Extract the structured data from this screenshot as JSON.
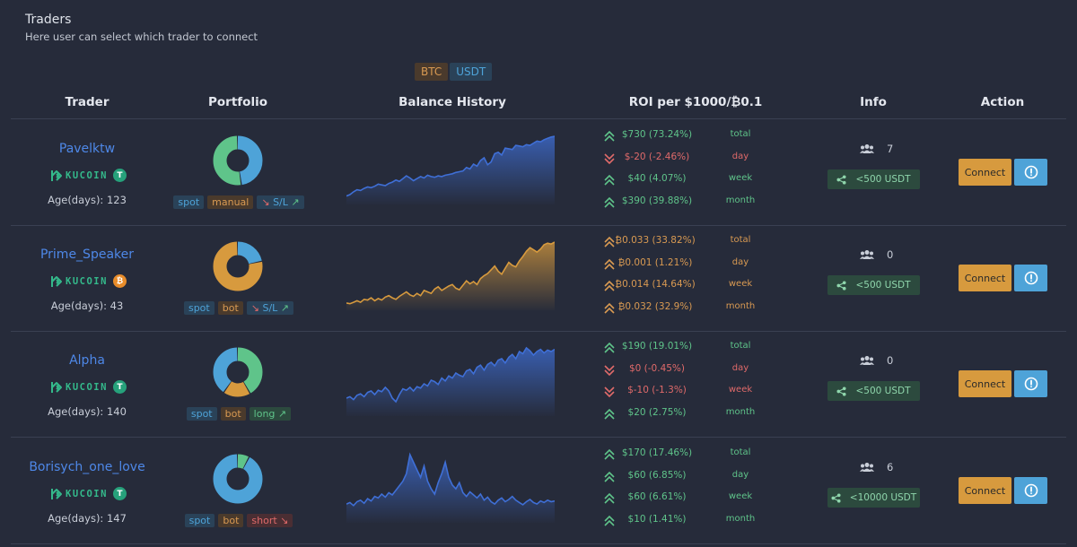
{
  "header": {
    "title": "Traders",
    "subtitle": "Here user can select which trader to connect"
  },
  "currency": {
    "btc": "BTC",
    "usdt": "USDT",
    "selected": "USDT"
  },
  "columns": {
    "trader": "Trader",
    "portfolio": "Portfolio",
    "balance": "Balance History",
    "roi": "ROI per $1000/₿0.1",
    "info": "Info",
    "action": "Action"
  },
  "colors": {
    "green": "#5fc48a",
    "red": "#e06a6a",
    "orange": "#d99a52",
    "blue": "#4e88e8"
  },
  "traders": [
    {
      "name": "Pavelktw",
      "exchange": "KUCOIN",
      "coin": "T",
      "coin_type": "usdt",
      "age": "Age(days): 123",
      "portfolio": [
        {
          "share": 0.48,
          "color": "#4ea3d8"
        },
        {
          "share": 0.52,
          "color": "#5fc48a"
        }
      ],
      "tags": [
        {
          "text": "spot",
          "style": "blue"
        },
        {
          "text": "manual",
          "style": "orange"
        },
        {
          "text": "S/L",
          "style": "blue",
          "icon": "sl-icon"
        }
      ],
      "balance": {
        "color": "#3f6fd6",
        "values": [
          14,
          18,
          26,
          32,
          30,
          36,
          40,
          38,
          42,
          48,
          46,
          44,
          50,
          54,
          60,
          56,
          64,
          72,
          66,
          58,
          64,
          70,
          66,
          74,
          70,
          68,
          72,
          70,
          74,
          76,
          78,
          82,
          84,
          86,
          96,
          92,
          106,
          100,
          116,
          124,
          104,
          112,
          136,
          140,
          132,
          152,
          150,
          148,
          160,
          158,
          156,
          162,
          160,
          166,
          172,
          170,
          176,
          180,
          184,
          186
        ]
      },
      "roi": [
        {
          "value": "$730 (73.24%)",
          "period": "total",
          "dir": "up"
        },
        {
          "value": "$-20 (-2.46%)",
          "period": "day",
          "dir": "down"
        },
        {
          "value": "$40 (4.07%)",
          "period": "week",
          "dir": "up"
        },
        {
          "value": "$390 (39.88%)",
          "period": "month",
          "dir": "up"
        }
      ],
      "users": "7",
      "limit": "<500 USDT",
      "connect": "Connect"
    },
    {
      "name": "Prime_Speaker",
      "exchange": "KUCOIN",
      "coin": "₿",
      "coin_type": "btc",
      "age": "Age(days): 43",
      "portfolio": [
        {
          "share": 0.22,
          "color": "#4ea3d8"
        },
        {
          "share": 0.78,
          "color": "#d79a3e"
        }
      ],
      "tags": [
        {
          "text": "spot",
          "style": "blue"
        },
        {
          "text": "bot",
          "style": "orange"
        },
        {
          "text": "S/L",
          "style": "blue",
          "icon": "sl-icon"
        }
      ],
      "balance": {
        "color": "#d79a3e",
        "values": [
          10,
          8,
          12,
          16,
          12,
          20,
          18,
          24,
          16,
          22,
          18,
          26,
          30,
          24,
          20,
          28,
          34,
          40,
          32,
          28,
          36,
          30,
          44,
          40,
          36,
          48,
          54,
          44,
          50,
          56,
          60,
          50,
          46,
          58,
          70,
          62,
          68,
          60,
          76,
          84,
          90,
          100,
          110,
          96,
          88,
          104,
          120,
          112,
          108,
          124,
          136,
          150,
          160,
          154,
          148,
          156,
          168,
          172,
          170,
          175
        ]
      },
      "roi": [
        {
          "value": "₿0.033 (33.82%)",
          "period": "total",
          "dir": "up"
        },
        {
          "value": "₿0.001 (1.21%)",
          "period": "day",
          "dir": "up"
        },
        {
          "value": "₿0.014 (14.64%)",
          "period": "week",
          "dir": "up"
        },
        {
          "value": "₿0.032 (32.9%)",
          "period": "month",
          "dir": "up"
        }
      ],
      "users": "0",
      "limit": "<500 USDT",
      "connect": "Connect"
    },
    {
      "name": "Alpha",
      "exchange": "KUCOIN",
      "coin": "T",
      "coin_type": "usdt",
      "age": "Age(days): 140",
      "portfolio": [
        {
          "share": 0.42,
          "color": "#5fc48a"
        },
        {
          "share": 0.18,
          "color": "#d79a3e"
        },
        {
          "share": 0.4,
          "color": "#4ea3d8"
        }
      ],
      "tags": [
        {
          "text": "spot",
          "style": "blue"
        },
        {
          "text": "bot",
          "style": "orange"
        },
        {
          "text": "long",
          "style": "green",
          "icon": "trend-up-icon"
        }
      ],
      "balance": {
        "color": "#3f6fd6",
        "values": [
          40,
          44,
          36,
          48,
          52,
          44,
          56,
          60,
          50,
          62,
          58,
          70,
          60,
          40,
          30,
          50,
          66,
          62,
          70,
          60,
          72,
          68,
          80,
          74,
          90,
          86,
          78,
          96,
          88,
          102,
          96,
          110,
          104,
          100,
          116,
          120,
          108,
          126,
          132,
          118,
          134,
          140,
          130,
          146,
          150,
          138,
          154,
          162,
          150,
          170,
          164,
          180,
          172,
          160,
          170,
          176,
          166,
          174,
          170,
          176
        ]
      },
      "roi": [
        {
          "value": "$190 (19.01%)",
          "period": "total",
          "dir": "up"
        },
        {
          "value": "$0 (-0.45%)",
          "period": "day",
          "dir": "down"
        },
        {
          "value": "$-10 (-1.3%)",
          "period": "week",
          "dir": "down"
        },
        {
          "value": "$20 (2.75%)",
          "period": "month",
          "dir": "up"
        }
      ],
      "users": "0",
      "limit": "<500 USDT",
      "connect": "Connect"
    },
    {
      "name": "Borisych_one_love",
      "exchange": "KUCOIN",
      "coin": "T",
      "coin_type": "usdt",
      "age": "Age(days): 147",
      "portfolio": [
        {
          "share": 0.08,
          "color": "#5fc48a"
        },
        {
          "share": 0.92,
          "color": "#4ea3d8"
        }
      ],
      "tags": [
        {
          "text": "spot",
          "style": "blue"
        },
        {
          "text": "bot",
          "style": "orange"
        },
        {
          "text": "short",
          "style": "red",
          "icon": "trend-down-icon"
        }
      ],
      "balance": {
        "color": "#3f6fd6",
        "values": [
          40,
          44,
          36,
          46,
          50,
          42,
          54,
          48,
          60,
          56,
          66,
          58,
          70,
          64,
          76,
          88,
          100,
          120,
          170,
          150,
          130,
          110,
          140,
          100,
          80,
          66,
          96,
          120,
          150,
          110,
          90,
          80,
          96,
          70,
          60,
          72,
          64,
          56,
          66,
          50,
          58,
          46,
          40,
          50,
          56,
          46,
          52,
          60,
          50,
          44,
          38,
          46,
          52,
          44,
          40,
          48,
          44,
          50,
          46,
          48
        ]
      },
      "roi": [
        {
          "value": "$170 (17.46%)",
          "period": "total",
          "dir": "up"
        },
        {
          "value": "$60 (6.85%)",
          "period": "day",
          "dir": "up"
        },
        {
          "value": "$60 (6.61%)",
          "period": "week",
          "dir": "up"
        },
        {
          "value": "$10 (1.41%)",
          "period": "month",
          "dir": "up"
        }
      ],
      "users": "6",
      "limit": "<10000 USDT",
      "connect": "Connect"
    }
  ]
}
